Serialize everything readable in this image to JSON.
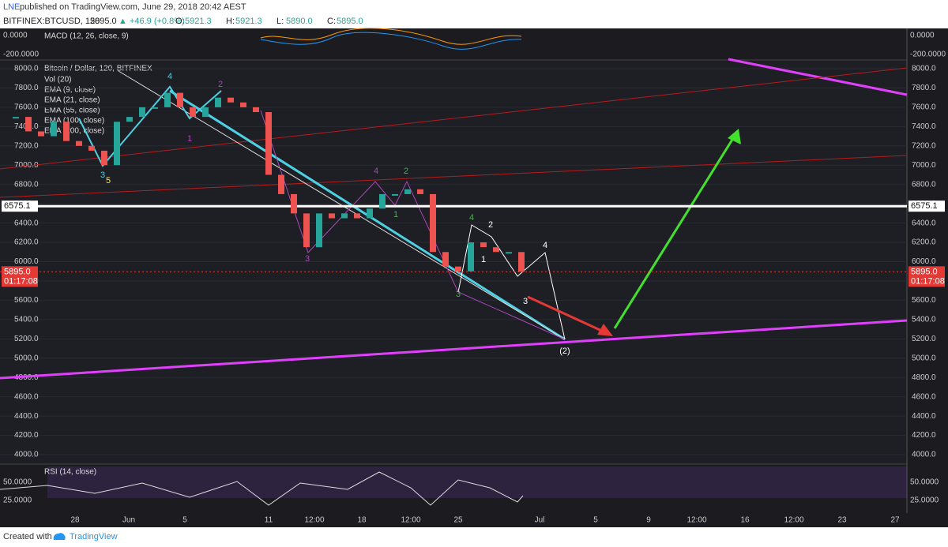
{
  "header": {
    "publisher": "LNE",
    "published_text": "published on TradingView.com, June 29, 2018 20:42 AEST",
    "symbol": "BITFINEX:BTCUSD, 120",
    "last": "5895.0",
    "change": "▲ +46.9 (+0.8%)",
    "ohlc": [
      {
        "label": "O:",
        "value": "5921.3"
      },
      {
        "label": "H:",
        "value": "5921.3"
      },
      {
        "label": "L:",
        "value": "5890.0"
      },
      {
        "label": "C:",
        "value": "5895.0"
      }
    ]
  },
  "macd_pane": {
    "label": "MACD (12, 26, close, 9)",
    "ticks": [
      "0.0000",
      "-200.0000"
    ]
  },
  "main_pane": {
    "title": "Bitcoin / Dollar, 120, BITFINEX",
    "indicators": [
      "Vol (20)",
      "EMA (9, close)",
      "EMA (21, close)",
      "EMA (55, close)",
      "EMA (100, close)",
      "EMA (200, close)"
    ],
    "ylim": [
      3902,
      8090
    ],
    "yticks": [
      {
        "value": 4000,
        "label": "4000.0"
      },
      {
        "value": 4200,
        "label": "4200.0"
      },
      {
        "value": 4400,
        "label": "4400.0"
      },
      {
        "value": 4600,
        "label": "4600.0"
      },
      {
        "value": 4800,
        "label": "4800.0"
      },
      {
        "value": 5000,
        "label": "5000.0"
      },
      {
        "value": 5200,
        "label": "5200.0"
      },
      {
        "value": 5400,
        "label": "5400.0"
      },
      {
        "value": 5600,
        "label": "5600.0"
      },
      {
        "value": 5800,
        "label": "5800.0"
      },
      {
        "value": 6000,
        "label": "6000.0"
      },
      {
        "value": 6200,
        "label": "6200.0"
      },
      {
        "value": 6400,
        "label": "6400.0"
      },
      {
        "value": 6600,
        "label": "6600.0"
      },
      {
        "value": 6800,
        "label": "6800.0"
      },
      {
        "value": 7000,
        "label": "7000.0"
      },
      {
        "value": 7200,
        "label": "7200.0"
      },
      {
        "value": 7400,
        "label": "7400.0"
      },
      {
        "value": 7600,
        "label": "7600.0"
      },
      {
        "value": 7800,
        "label": "7800.0"
      },
      {
        "value": 8000,
        "label": "8000.0"
      }
    ],
    "level": {
      "value": 6575.1,
      "label": "6575.1"
    },
    "last_price": {
      "value": 5895.0,
      "label": "5895.0",
      "countdown": "01:17:08"
    },
    "closes": [
      7500,
      7350,
      7300,
      7450,
      7250,
      7200,
      7150,
      7000,
      7450,
      7500,
      7600,
      7600,
      7750,
      7600,
      7500,
      7600,
      7700,
      7650,
      7600,
      7550,
      6900,
      6700,
      6500,
      6150,
      6500,
      6450,
      6500,
      6450,
      6550,
      6700,
      6700,
      6750,
      6700,
      6100,
      5950,
      5900,
      6200,
      6150,
      6100,
      6100,
      5895
    ],
    "wave_labels": [
      "3",
      "5",
      "4",
      "1",
      "2",
      "3",
      "4",
      "1",
      "2",
      "3",
      "4",
      "2",
      "1",
      "2",
      "3",
      "4",
      "(2)"
    ]
  },
  "rsi_pane": {
    "label": "RSI (14, close)",
    "ticks": [
      "50.0000",
      "25.0000"
    ]
  },
  "x_labels": [
    "28",
    "Jun",
    "5",
    "11",
    "12:00",
    "18",
    "12:00",
    "25",
    "Jul",
    "5",
    "9",
    "12:00",
    "16",
    "12:00",
    "23",
    "27"
  ],
  "footer": {
    "text": "Created with",
    "brand": "TradingView"
  }
}
